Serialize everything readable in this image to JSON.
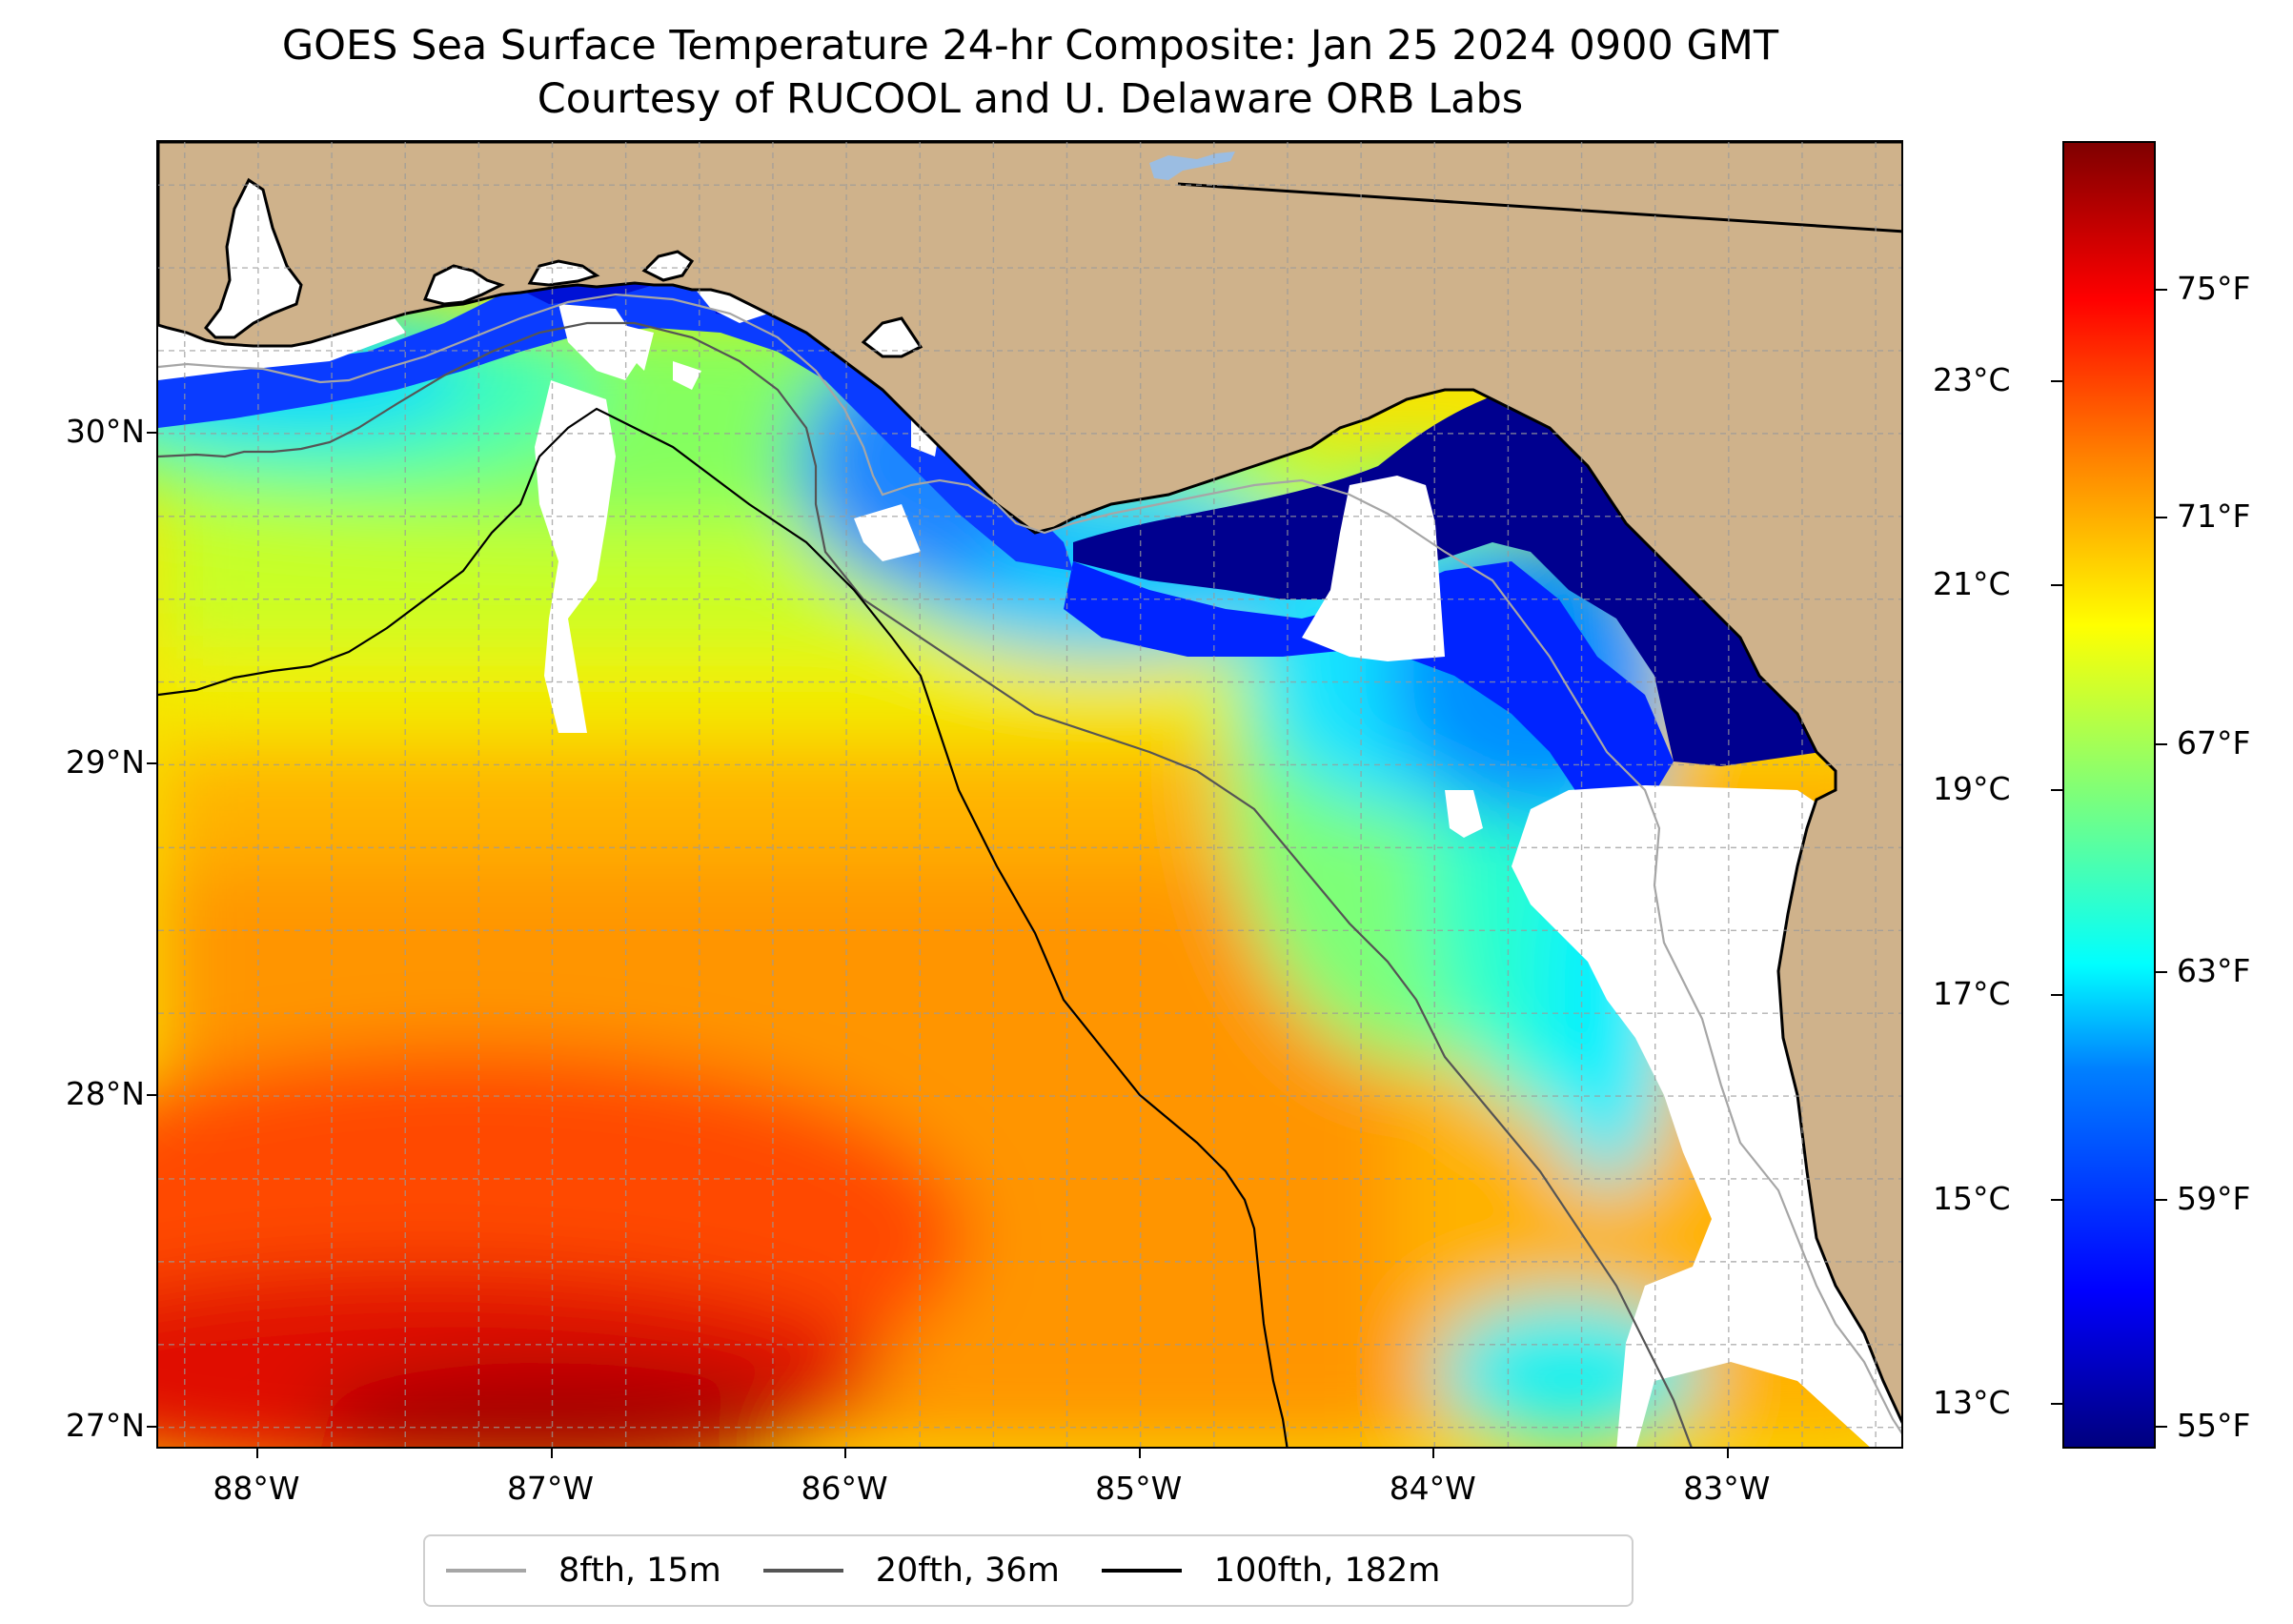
{
  "title": {
    "line1": "GOES Sea Surface Temperature 24-hr Composite: Jan 25 2024 0900 GMT",
    "line2": "Courtesy of RUCOOL and U. Delaware ORB Labs"
  },
  "map": {
    "lon_range": [
      -88.34,
      -82.4
    ],
    "lat_range": [
      26.93,
      30.88
    ],
    "lat_ticks": [
      {
        "value": 27,
        "label": "27°N"
      },
      {
        "value": 28,
        "label": "28°N"
      },
      {
        "value": 29,
        "label": "29°N"
      },
      {
        "value": 30,
        "label": "30°N"
      }
    ],
    "lon_ticks": [
      {
        "value": -88,
        "label": "88°W"
      },
      {
        "value": -87,
        "label": "87°W"
      },
      {
        "value": -86,
        "label": "86°W"
      },
      {
        "value": -85,
        "label": "85°W"
      },
      {
        "value": -84,
        "label": "84°W"
      },
      {
        "value": -83,
        "label": "83°W"
      }
    ],
    "gridlines": "dashed, every 0.25°",
    "land_color": "#cfb28b",
    "no_data_color": "#ffffff",
    "lake_color": "#9bbde2"
  },
  "colorbar": {
    "colormap": "jet",
    "celsius_ticks": [
      "23°C",
      "21°C",
      "19°C",
      "17°C",
      "15°C",
      "13°C"
    ],
    "fahrenheit_ticks": [
      "75°F",
      "71°F",
      "67°F",
      "63°F",
      "59°F",
      "55°F"
    ],
    "celsius_values": [
      23,
      21,
      19,
      17,
      15,
      13
    ],
    "fahrenheit_values": [
      75,
      71,
      67,
      63,
      59,
      55
    ],
    "range_f": [
      54.6,
      77.6
    ]
  },
  "legend": {
    "entries": [
      {
        "label": "8fth, 15m",
        "color": "#a6a6a6"
      },
      {
        "label": "20fth, 36m",
        "color": "#555555"
      },
      {
        "label": "100fth, 182m",
        "color": "#000000"
      }
    ]
  }
}
